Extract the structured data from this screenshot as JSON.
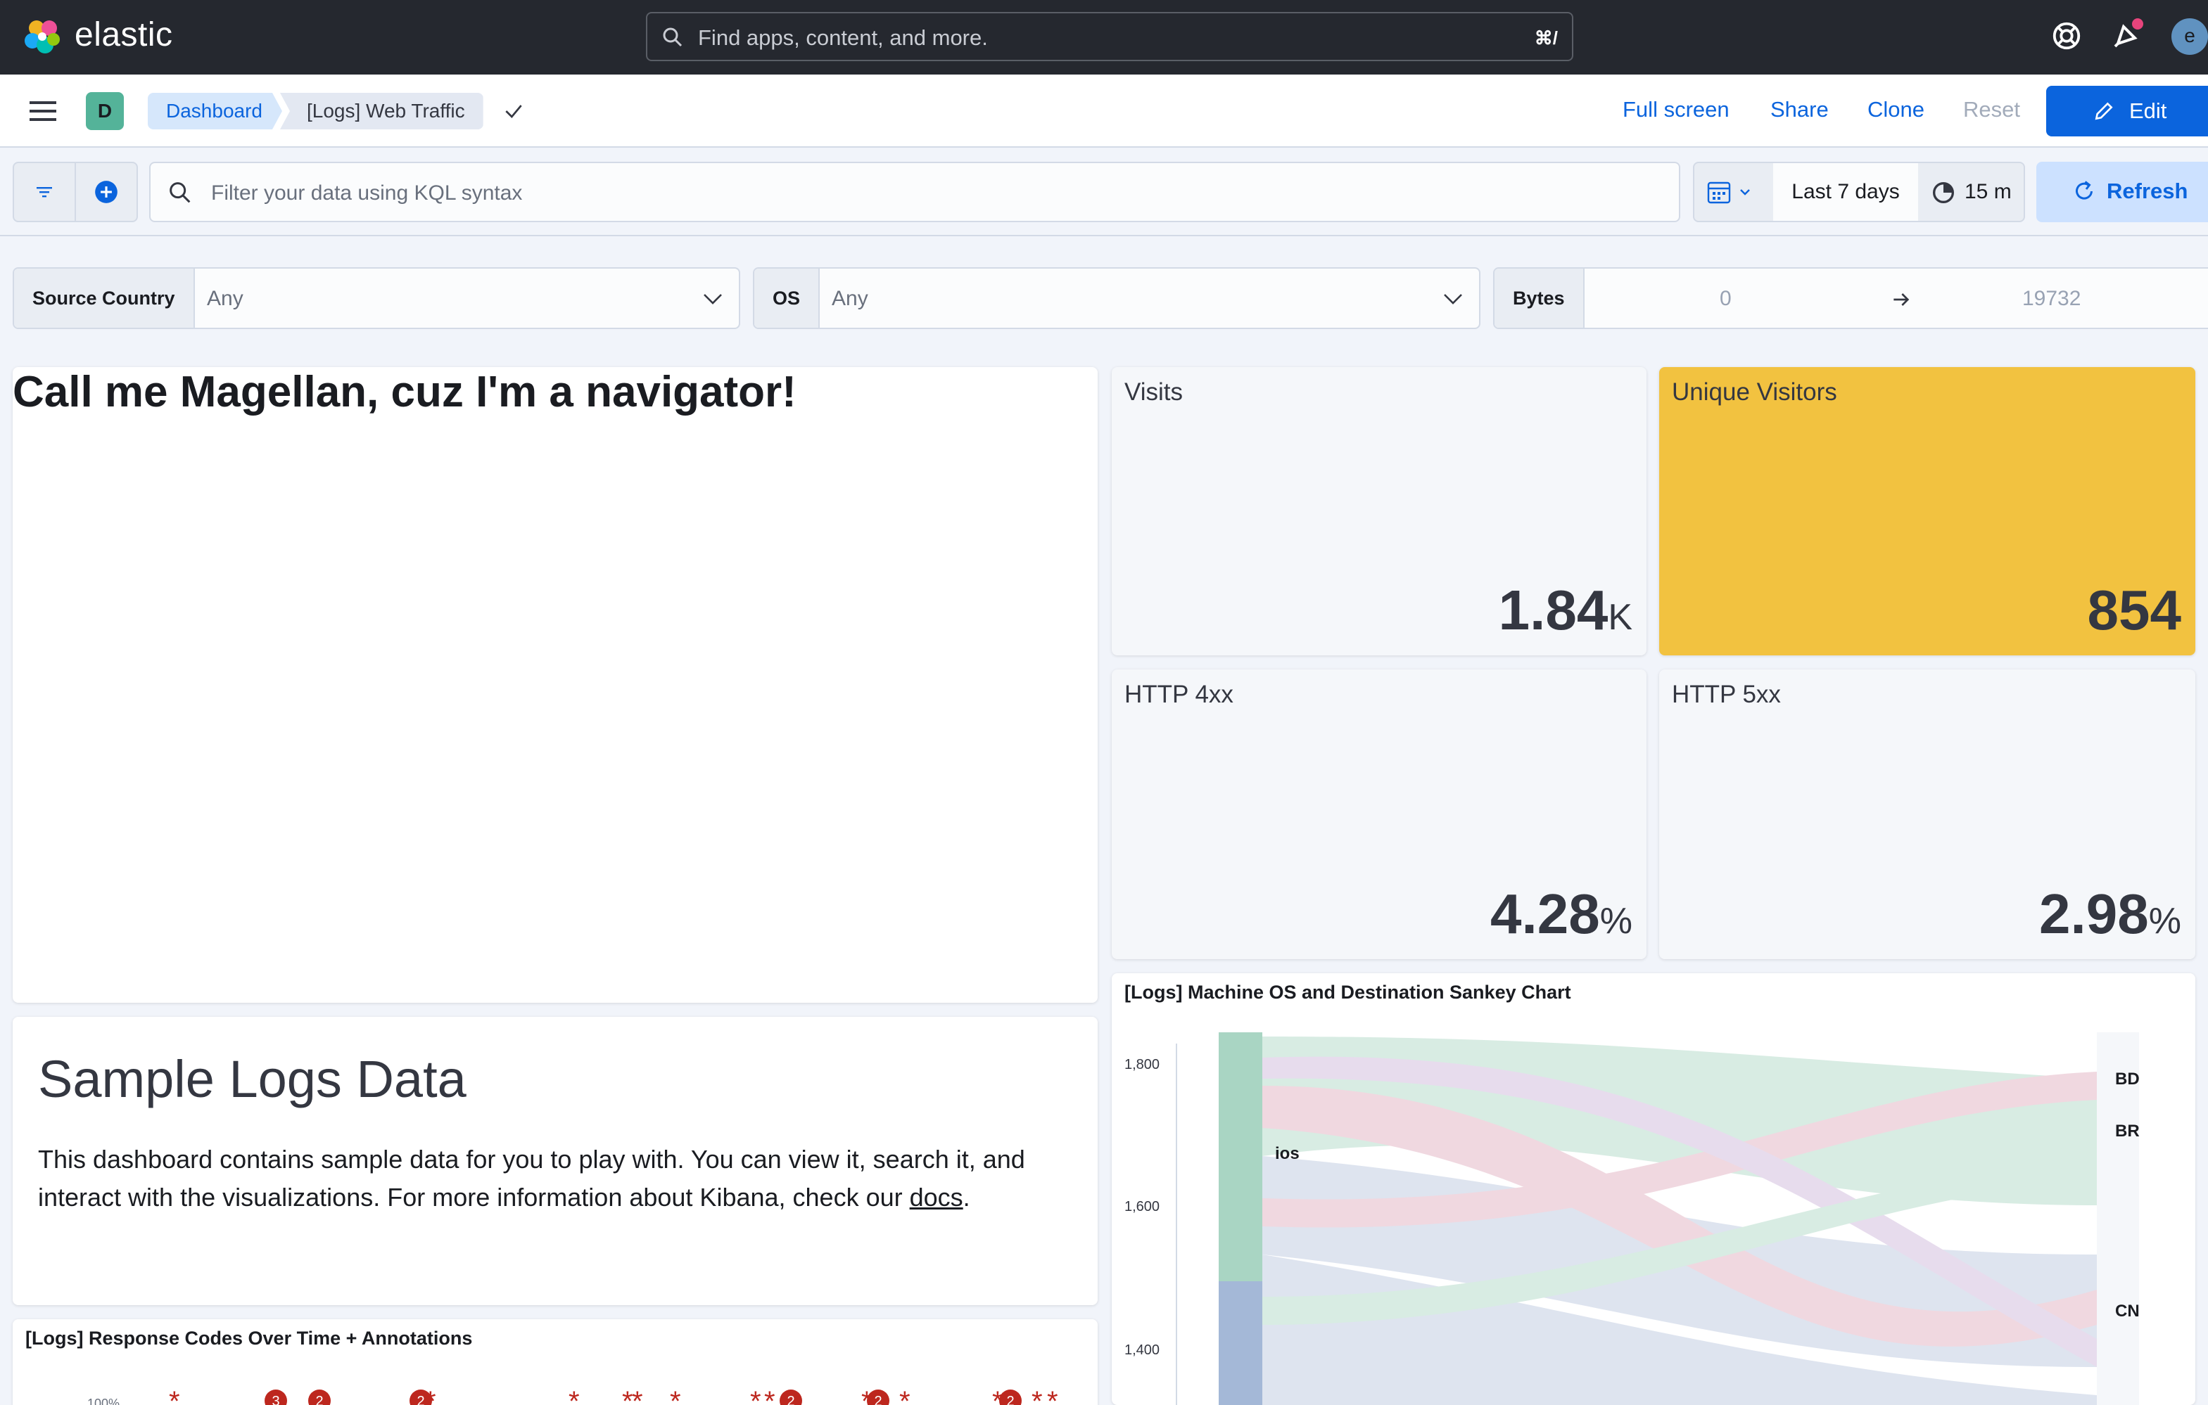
{
  "header": {
    "logo_text": "elastic",
    "search_placeholder": "Find apps, content, and more.",
    "search_shortcut": "⌘/",
    "avatar_initial": "e",
    "colors": {
      "bg": "#25282f",
      "notify_dot": "#e7447c"
    }
  },
  "navbar": {
    "space_initial": "D",
    "breadcrumbs": [
      "Dashboard",
      "[Logs] Web Traffic"
    ],
    "actions": {
      "full_screen": "Full screen",
      "share": "Share",
      "clone": "Clone",
      "reset": "Reset",
      "edit": "Edit"
    }
  },
  "query_bar": {
    "placeholder": "Filter your data using KQL syntax",
    "time_range": "Last 7 days",
    "refresh_interval": "15 m",
    "refresh_label": "Refresh"
  },
  "controls": {
    "source_country": {
      "label": "Source Country",
      "value": "Any"
    },
    "os": {
      "label": "OS",
      "value": "Any"
    },
    "bytes": {
      "label": "Bytes",
      "min": "0",
      "max": "19732"
    }
  },
  "panels": {
    "markdown_title": "Call me Magellan, cuz I'm a navigator!",
    "visits": {
      "label": "Visits",
      "value": "1.84",
      "unit": "K"
    },
    "unique_visitors": {
      "label": "Unique Visitors",
      "value": "854",
      "color": "#f2c240"
    },
    "http4xx": {
      "label": "HTTP 4xx",
      "value": "4.28",
      "unit": "%"
    },
    "http5xx": {
      "label": "HTTP 5xx",
      "value": "2.98",
      "unit": "%"
    },
    "sample": {
      "heading": "Sample Logs Data",
      "text": "This dashboard contains sample data for you to play with. You can view it, search it, and interact with the visualizations. For more information about Kibana, check our ",
      "link": "docs",
      "tail": "."
    },
    "sankey": {
      "title": "[Logs] Machine OS and Destination Sankey Chart",
      "yticks": [
        "1,800",
        "1,600",
        "1,400"
      ],
      "left_labels": [
        "ios"
      ],
      "right_labels": [
        "BD",
        "BR",
        "CN"
      ]
    },
    "response_codes": {
      "title": "[Logs] Response Codes Over Time + Annotations",
      "ytick": "100%",
      "annotation_counts": [
        "3",
        "2",
        "2",
        "2",
        "2",
        "2"
      ]
    }
  }
}
